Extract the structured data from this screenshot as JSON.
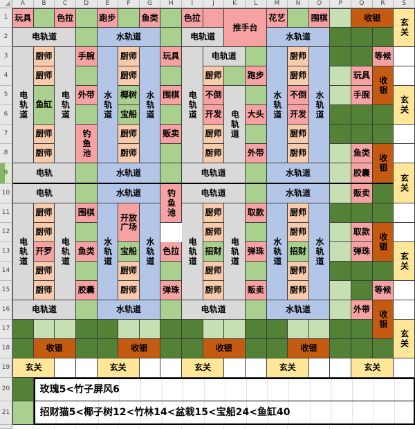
{
  "app": {
    "type": "spreadsheet-grid"
  },
  "column_headers": [
    "A",
    "B",
    "C",
    "D",
    "E",
    "F",
    "G",
    "H",
    "I",
    "J",
    "K",
    "L",
    "M",
    "N",
    "O",
    "P",
    "Q",
    "R",
    "S"
  ],
  "row_headers": [
    "1",
    "2",
    "3",
    "4",
    "5",
    "6",
    "7",
    "8",
    "9",
    "10",
    "11",
    "12",
    "13",
    "14",
    "15",
    "16",
    "17",
    "18",
    "19",
    "20",
    "21"
  ],
  "highlighted_row_header": "9",
  "colors": {
    "pink": "#F7A2A2",
    "peach": "#F8CBAD",
    "green": "#A9D08E",
    "lightgreen": "#C6E0B4",
    "darkgreen": "#538135",
    "blue": "#B4C6E7",
    "gray": "#D9D9D9",
    "orange": "#C55A11",
    "yellow": "#FFE699",
    "white": "#FFFFFF"
  },
  "cells_format": [
    "address",
    "text",
    "color_key",
    "colspan",
    "rowspan",
    "vertical_text"
  ],
  "cells": [
    [
      "A1",
      "玩具",
      "pink"
    ],
    [
      "B1",
      "",
      "green"
    ],
    [
      "C1",
      "色拉",
      "pink"
    ],
    [
      "D1",
      "",
      "green"
    ],
    [
      "E1",
      "跑步",
      "pink"
    ],
    [
      "F1",
      "",
      "green"
    ],
    [
      "G1",
      "鱼类",
      "pink"
    ],
    [
      "H1",
      "",
      "green"
    ],
    [
      "I1",
      "色拉",
      "pink"
    ],
    [
      "J1",
      "",
      "pink"
    ],
    [
      "K1",
      "推手台",
      "pink",
      2,
      2
    ],
    [
      "M1",
      "花艺",
      "pink"
    ],
    [
      "N1",
      "",
      "green"
    ],
    [
      "O1",
      "围棋",
      "pink"
    ],
    [
      "P1",
      "",
      "lightgreen"
    ],
    [
      "Q1",
      "收银",
      "orange",
      2
    ],
    [
      "S1",
      "玄关",
      "yellow",
      1,
      2,
      1
    ],
    [
      "A2",
      "电轨道",
      "gray",
      3
    ],
    [
      "D2",
      "",
      "green"
    ],
    [
      "E2",
      "水轨道",
      "blue",
      3
    ],
    [
      "H2",
      "",
      "green"
    ],
    [
      "I2",
      "电轨道",
      "gray",
      2
    ],
    [
      "M2",
      "水轨道",
      "blue",
      3
    ],
    [
      "P2",
      "",
      "darkgreen"
    ],
    [
      "Q2",
      "",
      "darkgreen"
    ],
    [
      "R2",
      "",
      "darkgreen"
    ],
    [
      "A3",
      "电轨道",
      "gray",
      1,
      6,
      1
    ],
    [
      "B3",
      "厨师",
      "peach"
    ],
    [
      "C3",
      "电轨道",
      "gray",
      1,
      6,
      1
    ],
    [
      "D3",
      "手腕",
      "pink"
    ],
    [
      "E3",
      "水轨道",
      "blue",
      1,
      6,
      1
    ],
    [
      "F3",
      "厨师",
      "peach"
    ],
    [
      "G3",
      "水轨道",
      "blue",
      1,
      6,
      1
    ],
    [
      "H3",
      "玩具",
      "pink"
    ],
    [
      "I3",
      "电轨道",
      "gray",
      1,
      6,
      1
    ],
    [
      "J3",
      "电轨道",
      "gray",
      2
    ],
    [
      "L3",
      "",
      "green"
    ],
    [
      "M3",
      "水轨道",
      "blue",
      1,
      6,
      1
    ],
    [
      "N3",
      "厨师",
      "peach"
    ],
    [
      "O3",
      "水轨道",
      "blue",
      1,
      6,
      1
    ],
    [
      "P3",
      "",
      "darkgreen"
    ],
    [
      "Q3",
      "",
      "darkgreen"
    ],
    [
      "R3",
      "等候",
      "pink"
    ],
    [
      "S3",
      "",
      "white"
    ],
    [
      "B4",
      "厨师",
      "peach"
    ],
    [
      "D4",
      "",
      "green"
    ],
    [
      "F4",
      "厨师",
      "peach"
    ],
    [
      "H4",
      "",
      "green"
    ],
    [
      "J4",
      "厨师",
      "peach"
    ],
    [
      "K4",
      "",
      "green"
    ],
    [
      "L4",
      "跑步",
      "pink"
    ],
    [
      "N4",
      "厨师",
      "peach"
    ],
    [
      "P4",
      "",
      "lightgreen"
    ],
    [
      "Q4",
      "玩具",
      "pink"
    ],
    [
      "R4",
      "收银",
      "orange",
      1,
      2,
      1
    ],
    [
      "S4",
      "",
      "white"
    ],
    [
      "B5",
      "鱼缸",
      "green",
      1,
      2
    ],
    [
      "D5",
      "外带",
      "pink"
    ],
    [
      "F5",
      "椰树",
      "green"
    ],
    [
      "H5",
      "围棋",
      "pink"
    ],
    [
      "J5",
      "不倒",
      "pink"
    ],
    [
      "K5",
      "电轨道",
      "gray",
      1,
      4,
      1
    ],
    [
      "L5",
      "",
      "green"
    ],
    [
      "N5",
      "不倒",
      "pink"
    ],
    [
      "P5",
      "",
      "lightgreen"
    ],
    [
      "Q5",
      "手腕",
      "pink"
    ],
    [
      "S5",
      "玄关",
      "yellow",
      1,
      2,
      1
    ],
    [
      "D6",
      "",
      "green"
    ],
    [
      "F6",
      "宝船",
      "green"
    ],
    [
      "H6",
      "",
      "green"
    ],
    [
      "J6",
      "开发",
      "pink"
    ],
    [
      "L6",
      "大头",
      "pink"
    ],
    [
      "N6",
      "开发",
      "pink"
    ],
    [
      "P6",
      "",
      "darkgreen"
    ],
    [
      "Q6",
      "",
      "darkgreen"
    ],
    [
      "R6",
      "",
      "darkgreen"
    ],
    [
      "B7",
      "厨师",
      "peach"
    ],
    [
      "D7",
      "钓鱼池",
      "pink",
      1,
      2,
      1
    ],
    [
      "F7",
      "厨师",
      "peach"
    ],
    [
      "H7",
      "贩卖",
      "pink"
    ],
    [
      "J7",
      "厨师",
      "peach"
    ],
    [
      "L7",
      "",
      "green"
    ],
    [
      "N7",
      "厨师",
      "peach"
    ],
    [
      "P7",
      "",
      "darkgreen"
    ],
    [
      "Q7",
      "",
      "darkgreen"
    ],
    [
      "R7",
      "",
      "darkgreen"
    ],
    [
      "S7",
      "",
      "white"
    ],
    [
      "B8",
      "厨师",
      "peach"
    ],
    [
      "F8",
      "厨师",
      "peach"
    ],
    [
      "H8",
      "",
      "green"
    ],
    [
      "J8",
      "厨师",
      "peach"
    ],
    [
      "L8",
      "外带",
      "pink"
    ],
    [
      "N8",
      "厨师",
      "peach"
    ],
    [
      "P8",
      "",
      "lightgreen"
    ],
    [
      "Q8",
      "鱼类",
      "pink"
    ],
    [
      "R8",
      "收银",
      "orange",
      1,
      2,
      1
    ],
    [
      "S8",
      "",
      "white"
    ],
    [
      "A9",
      "电轨",
      "gray",
      3
    ],
    [
      "D9",
      "",
      "green"
    ],
    [
      "E9",
      "水轨道",
      "blue",
      3
    ],
    [
      "H9",
      "",
      "green"
    ],
    [
      "I9",
      "电轨道",
      "gray",
      3
    ],
    [
      "L9",
      "",
      "green"
    ],
    [
      "M9",
      "水轨道",
      "blue",
      3
    ],
    [
      "P9",
      "",
      "lightgreen"
    ],
    [
      "Q9",
      "胶囊",
      "pink"
    ],
    [
      "S9",
      "玄关",
      "yellow",
      1,
      2,
      1
    ],
    [
      "A10",
      "电轨",
      "gray",
      3
    ],
    [
      "D10",
      "",
      "green"
    ],
    [
      "E10",
      "水轨道",
      "blue",
      3
    ],
    [
      "H10",
      "钓鱼池",
      "pink",
      1,
      2,
      1
    ],
    [
      "I10",
      "电轨道",
      "gray",
      3
    ],
    [
      "L10",
      "",
      "green"
    ],
    [
      "M10",
      "水轨道",
      "blue",
      3
    ],
    [
      "P10",
      "",
      "lightgreen"
    ],
    [
      "Q10",
      "贩卖",
      "pink"
    ],
    [
      "R10",
      "",
      "darkgreen"
    ],
    [
      "A11",
      "电轨道",
      "gray",
      1,
      5,
      1
    ],
    [
      "B11",
      "厨师",
      "peach"
    ],
    [
      "C11",
      "电轨道",
      "gray",
      1,
      5,
      1
    ],
    [
      "D11",
      "围棋",
      "pink"
    ],
    [
      "E11",
      "水轨道",
      "blue",
      1,
      5,
      1
    ],
    [
      "F11",
      "开放广场",
      "pink",
      1,
      2
    ],
    [
      "G11",
      "水轨道",
      "blue",
      1,
      5,
      1
    ],
    [
      "I11",
      "电轨道",
      "gray",
      1,
      5,
      1
    ],
    [
      "J11",
      "厨师",
      "peach"
    ],
    [
      "K11",
      "电轨道",
      "gray",
      1,
      5,
      1
    ],
    [
      "L11",
      "取款",
      "pink"
    ],
    [
      "M11",
      "水轨道",
      "blue",
      1,
      5,
      1
    ],
    [
      "N11",
      "厨师",
      "peach"
    ],
    [
      "O11",
      "水轨道",
      "blue",
      1,
      5,
      1
    ],
    [
      "P11",
      "",
      "darkgreen"
    ],
    [
      "Q11",
      "",
      "darkgreen"
    ],
    [
      "R11",
      "",
      "darkgreen"
    ],
    [
      "S11",
      "",
      "white"
    ],
    [
      "B12",
      "厨师",
      "peach"
    ],
    [
      "D12",
      "",
      "green"
    ],
    [
      "J12",
      "厨师",
      "peach"
    ],
    [
      "L12",
      "",
      "green"
    ],
    [
      "N12",
      "厨师",
      "peach"
    ],
    [
      "P12",
      "",
      "lightgreen"
    ],
    [
      "Q12",
      "取款",
      "pink"
    ],
    [
      "R12",
      "收银",
      "orange",
      1,
      2,
      1
    ],
    [
      "S12",
      "",
      "white"
    ],
    [
      "B13",
      "开罗",
      "pink"
    ],
    [
      "D13",
      "鱼类",
      "pink"
    ],
    [
      "F13",
      "宝船",
      "green"
    ],
    [
      "H13",
      "色拉",
      "pink"
    ],
    [
      "J13",
      "招财",
      "green"
    ],
    [
      "L13",
      "弹珠",
      "pink"
    ],
    [
      "N13",
      "招财",
      "green"
    ],
    [
      "P13",
      "",
      "lightgreen"
    ],
    [
      "Q13",
      "弹珠",
      "pink"
    ],
    [
      "S13",
      "玄关",
      "yellow",
      1,
      2,
      1
    ],
    [
      "B14",
      "厨师",
      "peach"
    ],
    [
      "D14",
      "",
      "green"
    ],
    [
      "F14",
      "厨师",
      "peach"
    ],
    [
      "H14",
      "",
      "green"
    ],
    [
      "J14",
      "厨师",
      "peach"
    ],
    [
      "L14",
      "",
      "green"
    ],
    [
      "N14",
      "厨师",
      "peach"
    ],
    [
      "P14",
      "",
      "darkgreen"
    ],
    [
      "Q14",
      "",
      "darkgreen"
    ],
    [
      "R14",
      "",
      "darkgreen"
    ],
    [
      "B15",
      "厨师",
      "peach"
    ],
    [
      "D15",
      "胶囊",
      "pink"
    ],
    [
      "F15",
      "厨师",
      "peach"
    ],
    [
      "H15",
      "弹珠",
      "pink"
    ],
    [
      "J15",
      "厨师",
      "peach"
    ],
    [
      "L15",
      "贩卖",
      "pink"
    ],
    [
      "N15",
      "厨师",
      "peach"
    ],
    [
      "P15",
      "",
      "lightgreen"
    ],
    [
      "Q15",
      "",
      "darkgreen"
    ],
    [
      "R15",
      "等候",
      "pink"
    ],
    [
      "S15",
      "",
      "white"
    ],
    [
      "A16",
      "电轨道",
      "gray",
      3
    ],
    [
      "D16",
      "",
      "green"
    ],
    [
      "E16",
      "水轨道",
      "blue",
      3
    ],
    [
      "H16",
      "",
      "green"
    ],
    [
      "I16",
      "电轨道",
      "gray",
      3
    ],
    [
      "L16",
      "",
      "green"
    ],
    [
      "M16",
      "水轨道",
      "blue",
      3
    ],
    [
      "P16",
      "",
      "lightgreen"
    ],
    [
      "Q16",
      "外带",
      "pink"
    ],
    [
      "R16",
      "收银",
      "orange",
      1,
      2,
      1
    ],
    [
      "S16",
      "",
      "white"
    ],
    [
      "A17",
      "",
      "darkgreen"
    ],
    [
      "B17",
      "",
      "lightgreen"
    ],
    [
      "C17",
      "",
      "lightgreen"
    ],
    [
      "D17",
      "",
      "darkgreen"
    ],
    [
      "E17",
      "",
      "darkgreen"
    ],
    [
      "F17",
      "",
      "lightgreen"
    ],
    [
      "G17",
      "",
      "lightgreen"
    ],
    [
      "H17",
      "",
      "darkgreen"
    ],
    [
      "I17",
      "",
      "darkgreen"
    ],
    [
      "J17",
      "",
      "lightgreen"
    ],
    [
      "K17",
      "",
      "lightgreen"
    ],
    [
      "L17",
      "",
      "darkgreen"
    ],
    [
      "M17",
      "",
      "darkgreen"
    ],
    [
      "N17",
      "",
      "lightgreen"
    ],
    [
      "O17",
      "",
      "lightgreen"
    ],
    [
      "P17",
      "",
      "darkgreen"
    ],
    [
      "Q17",
      "",
      "darkgreen"
    ],
    [
      "S17",
      "玄关",
      "yellow",
      1,
      2,
      1
    ],
    [
      "A18",
      "",
      "darkgreen"
    ],
    [
      "B18",
      "收银",
      "orange",
      2
    ],
    [
      "D18",
      "",
      "darkgreen"
    ],
    [
      "E18",
      "",
      "darkgreen"
    ],
    [
      "F18",
      "收银",
      "orange",
      2
    ],
    [
      "H18",
      "",
      "darkgreen"
    ],
    [
      "I18",
      "",
      "darkgreen"
    ],
    [
      "J18",
      "收银",
      "orange",
      2
    ],
    [
      "L18",
      "",
      "darkgreen"
    ],
    [
      "M18",
      "",
      "darkgreen"
    ],
    [
      "N18",
      "收银",
      "orange",
      2
    ],
    [
      "P18",
      "",
      "darkgreen"
    ],
    [
      "Q18",
      "",
      "darkgreen"
    ],
    [
      "R18",
      "",
      "darkgreen"
    ],
    [
      "A19",
      "玄关",
      "yellow",
      2
    ],
    [
      "C19",
      "",
      "white"
    ],
    [
      "D19",
      "",
      "white"
    ],
    [
      "E19",
      "玄关",
      "yellow",
      2
    ],
    [
      "G19",
      "",
      "white"
    ],
    [
      "H19",
      "",
      "white"
    ],
    [
      "I19",
      "玄关",
      "yellow",
      2
    ],
    [
      "K19",
      "",
      "white"
    ],
    [
      "L19",
      "",
      "white"
    ],
    [
      "M19",
      "玄关",
      "yellow",
      2
    ],
    [
      "O19",
      "",
      "white"
    ],
    [
      "P19",
      "",
      "white"
    ],
    [
      "Q19",
      "玄关",
      "yellow",
      2
    ],
    [
      "S19",
      "",
      "white"
    ],
    [
      "A20",
      "",
      "darkgreen"
    ],
    [
      "B20",
      "玫瑰5<竹子屏风6",
      "white",
      18,
      1,
      0,
      "note first"
    ],
    [
      "A21",
      "",
      "green"
    ],
    [
      "B21",
      "招财猫5<椰子树12<竹林14<盆栽15<宝船24<鱼缸40",
      "white",
      18,
      1,
      0,
      "note second"
    ]
  ]
}
